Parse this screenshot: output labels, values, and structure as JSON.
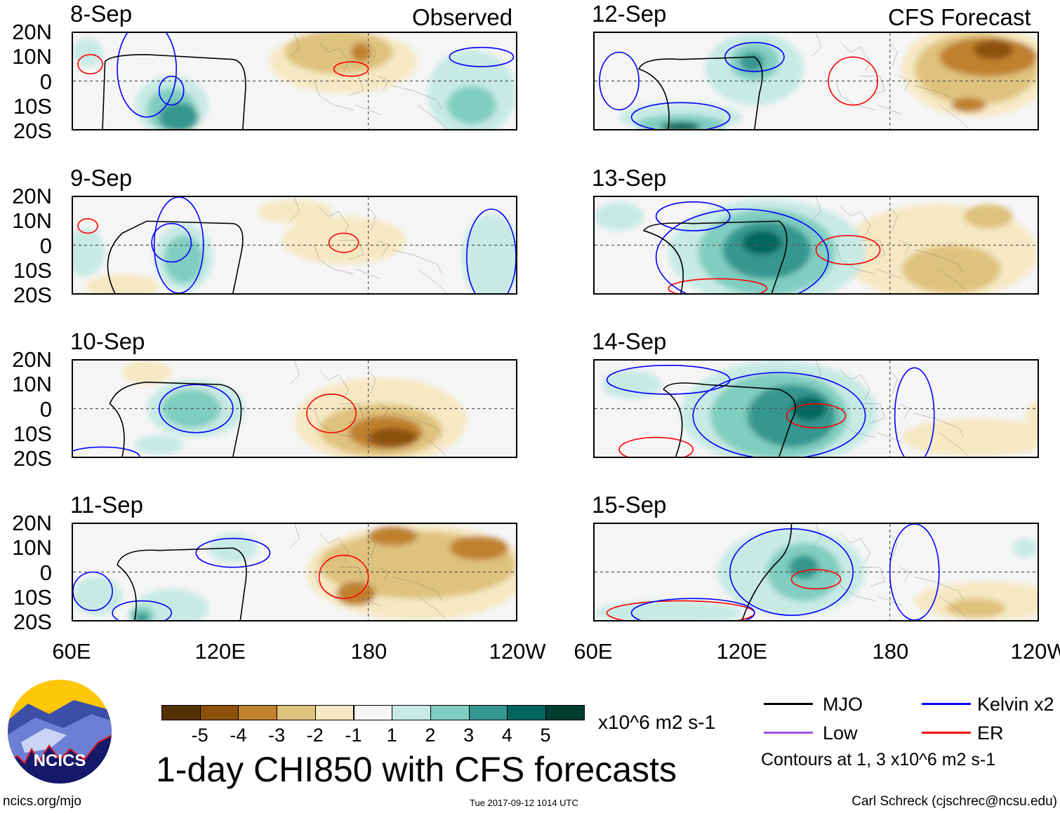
{
  "headers": {
    "observed": "Observed",
    "forecast": "CFS Forecast"
  },
  "panels": [
    {
      "date": "8-Sep",
      "group": "observed"
    },
    {
      "date": "9-Sep",
      "group": "observed"
    },
    {
      "date": "10-Sep",
      "group": "observed"
    },
    {
      "date": "11-Sep",
      "group": "observed"
    },
    {
      "date": "12-Sep",
      "group": "forecast"
    },
    {
      "date": "13-Sep",
      "group": "forecast"
    },
    {
      "date": "14-Sep",
      "group": "forecast"
    },
    {
      "date": "15-Sep",
      "group": "forecast"
    }
  ],
  "lat_labels": [
    "20N",
    "10N",
    "0",
    "10S",
    "20S"
  ],
  "lon_labels": [
    "60E",
    "120E",
    "180",
    "120W"
  ],
  "colorbar": {
    "labels": [
      "-5",
      "-4",
      "-3",
      "-2",
      "-1",
      "1",
      "2",
      "3",
      "4",
      "5"
    ],
    "colors": [
      "#543005",
      "#8c510a",
      "#bf812d",
      "#dfc27d",
      "#f6e8c3",
      "#f5f5f5",
      "#c7eae5",
      "#80cdc1",
      "#35978f",
      "#01665e",
      "#003c30"
    ],
    "units": "x10^6 m2 s-1"
  },
  "title": "1-day CHI850 with CFS forecasts",
  "legend": {
    "items": [
      {
        "label": "MJO",
        "color": "#000000"
      },
      {
        "label": "Kelvin x2",
        "color": "#0000ff"
      },
      {
        "label": "Low",
        "color": "#9b4fe0"
      },
      {
        "label": "ER",
        "color": "#ff0000"
      }
    ],
    "note": "Contours at 1, 3 x10^6 m2 s-1"
  },
  "logo": {
    "text": "NCICS"
  },
  "footer": {
    "url": "ncics.org/mjo",
    "timestamp": "Tue 2017-09-12 1014 UTC",
    "author": "Carl Schreck (cjschrec@ncsu.edu)"
  }
}
